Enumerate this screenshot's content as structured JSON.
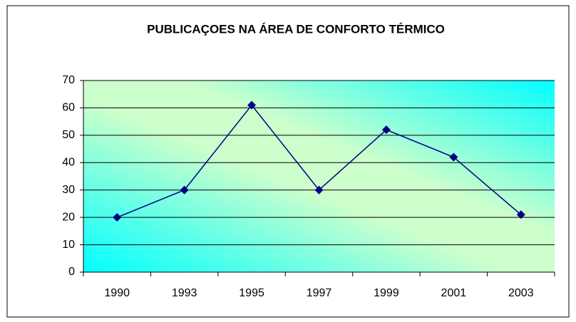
{
  "chart_data": {
    "type": "line",
    "title": "PUBLICAÇOES NA ÁREA DE CONFORTO TÉRMICO",
    "categories": [
      "1990",
      "1993",
      "1995",
      "1997",
      "1999",
      "2001",
      "2003"
    ],
    "series": [
      {
        "name": "Publicações",
        "color": "#000080",
        "values": [
          20,
          30,
          61,
          30,
          52,
          42,
          21
        ]
      }
    ],
    "ylim": [
      0,
      70
    ],
    "yticks": [
      0,
      10,
      20,
      30,
      40,
      50,
      60,
      70
    ],
    "grid": true
  }
}
